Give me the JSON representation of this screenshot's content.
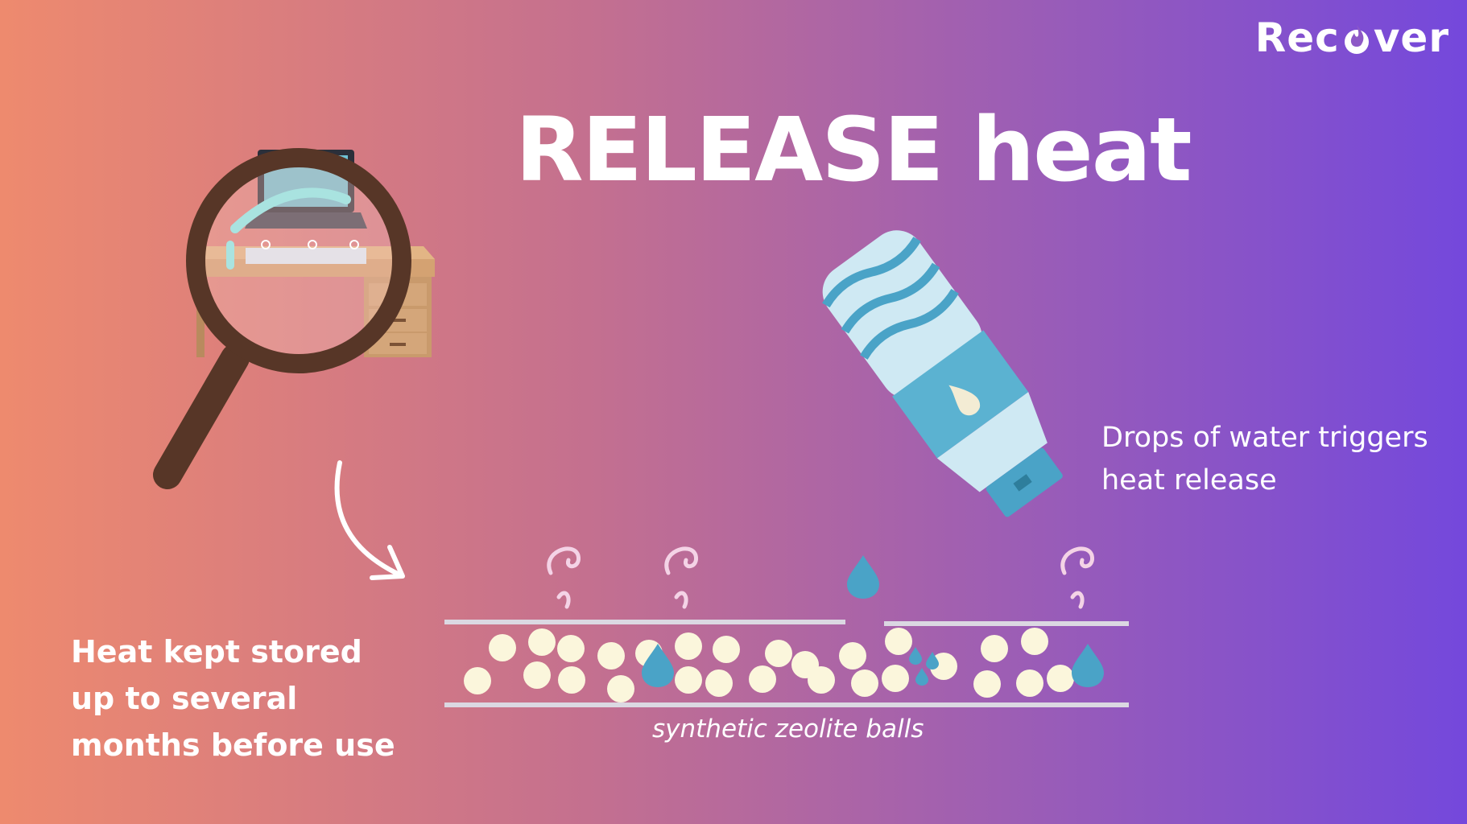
{
  "brand": {
    "name_prefix": "Rec",
    "name_suffix": "ver"
  },
  "slide": {
    "title": "RELEASE heat",
    "water_caption_line1": "Drops of water triggers",
    "water_caption_line2": "heat release",
    "storage_caption_line1": "Heat kept stored",
    "storage_caption_line2": "up to several",
    "storage_caption_line3": "months before use",
    "balls_caption": "synthetic zeolite balls"
  },
  "colors": {
    "gradient_start": "#ee8a6e",
    "gradient_end": "#7448dc",
    "text": "#ffffff",
    "ball": "#fbf6dc",
    "water": "#4aa3c7",
    "bottle": "#cfe9f3",
    "magnifier": "#573627",
    "desk": "#c99a6c"
  },
  "icons": [
    "magnifier-desk-laptop-illustration",
    "water-bottle-illustration",
    "curved-arrow-icon",
    "steam-swirl-icon",
    "water-drop-icon",
    "flame-icon"
  ]
}
